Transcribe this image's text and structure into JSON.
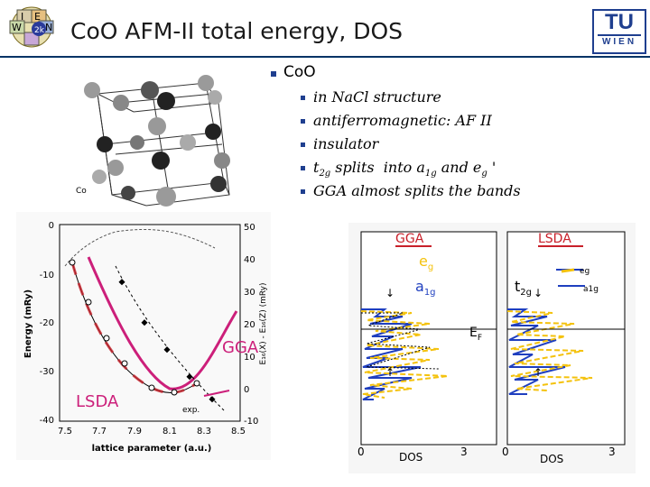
{
  "slide": {
    "title": "CoO AFM-II total energy, DOS",
    "logo_left_letters": [
      "W",
      "I",
      "E",
      "N",
      "2k"
    ],
    "logo_right": {
      "top": "TU",
      "bottom": "WIEN"
    }
  },
  "bullets": {
    "main": "CoO",
    "sub": [
      {
        "pre": "in NaCl structure"
      },
      {
        "pre": "antiferromagnetic: AF II"
      },
      {
        "pre": "insulator"
      },
      {
        "pre": "t",
        "s1": "2g",
        "mid": " splits  into a",
        "s2": "1g",
        "mid2": " and e",
        "s3": "g",
        "post": "'"
      },
      {
        "pre": "GGA almost splits the bands"
      }
    ]
  },
  "crystal": {
    "label": "Co"
  },
  "energy_plot": {
    "ylabel": "Energy (mRy)",
    "y2label": "E₁₆(X) - E₁₆(Z)  (mRy)",
    "xlabel": "lattice parameter (a.u.)",
    "xticks": [
      "7.5",
      "7.7",
      "7.9",
      "8.1",
      "8.3",
      "8.5"
    ],
    "yticks": [
      "0",
      "-10",
      "-20",
      "-30",
      "-40"
    ],
    "y2ticks": [
      "50",
      "40",
      "30",
      "20",
      "10",
      "0",
      "-10"
    ],
    "annot_exp": "exp.",
    "annot_gga": "GGA",
    "annot_lsda": "LSDA"
  },
  "dos_plot": {
    "gga_label": "GGA",
    "lsda_label": "LSDA",
    "eg": "e",
    "eg_sub": "g",
    "a1g": "a",
    "a1g_sub": "1g",
    "t2g": "t",
    "t2g_sub": "2g",
    "eg_small": "eg",
    "a1g_small": "a1g",
    "ef": "E",
    "ef_sub": "F",
    "xlabel_left": "DOS",
    "xlabel_right": "DOS",
    "x0_left": "0",
    "x3_left": "3",
    "x0_right": "0",
    "x3_right": "3"
  },
  "colors": {
    "accent": "#1f3f8f",
    "red": "#c8202a",
    "magenta": "#cc1f7a",
    "yellow": "#f4c20d",
    "blue": "#1f3fbf"
  }
}
